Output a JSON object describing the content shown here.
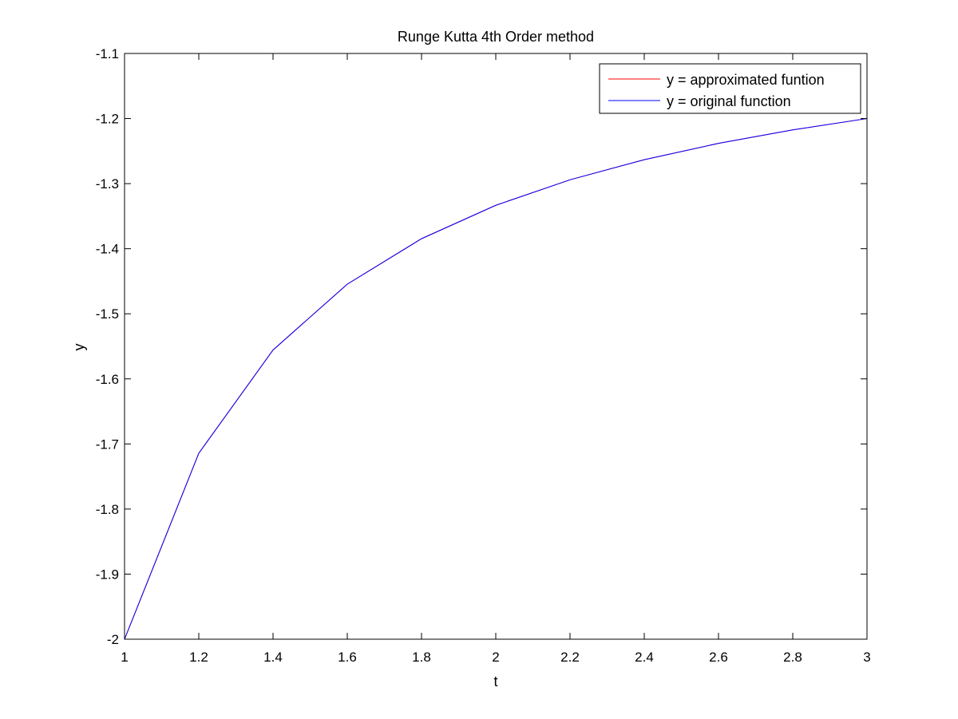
{
  "chart_data": {
    "type": "line",
    "title": "Runge Kutta 4th Order method",
    "xlabel": "t",
    "ylabel": "y",
    "xlim": [
      1,
      3
    ],
    "ylim": [
      -2,
      -1.1
    ],
    "xticks": [
      1,
      1.2,
      1.4,
      1.6,
      1.8,
      2,
      2.2,
      2.4,
      2.6,
      2.8,
      3
    ],
    "yticks": [
      -2,
      -1.9,
      -1.8,
      -1.7,
      -1.6,
      -1.5,
      -1.4,
      -1.3,
      -1.2,
      -1.1
    ],
    "xtick_labels": [
      "1",
      "1.2",
      "1.4",
      "1.6",
      "1.8",
      "2",
      "2.2",
      "2.4",
      "2.6",
      "2.8",
      "3"
    ],
    "ytick_labels": [
      "-2",
      "-1.9",
      "-1.8",
      "-1.7",
      "-1.6",
      "-1.5",
      "-1.4",
      "-1.3",
      "-1.2",
      "-1.1"
    ],
    "grid": false,
    "legend_position": "top-right",
    "series": [
      {
        "name": "y = approximated funtion",
        "color": "#ff0000",
        "x": [
          1,
          1.2,
          1.4,
          1.6,
          1.8,
          2,
          2.2,
          2.4,
          2.6,
          2.8,
          3
        ],
        "y": [
          -2,
          -1.7143,
          -1.5556,
          -1.4545,
          -1.3846,
          -1.3333,
          -1.2941,
          -1.2632,
          -1.2381,
          -1.2174,
          -1.2
        ]
      },
      {
        "name": "y = original function",
        "color": "#0000ff",
        "x": [
          1,
          1.2,
          1.4,
          1.6,
          1.8,
          2,
          2.2,
          2.4,
          2.6,
          2.8,
          3
        ],
        "y": [
          -2,
          -1.7143,
          -1.5556,
          -1.4545,
          -1.3846,
          -1.3333,
          -1.2941,
          -1.2632,
          -1.2381,
          -1.2174,
          -1.2
        ]
      }
    ]
  }
}
